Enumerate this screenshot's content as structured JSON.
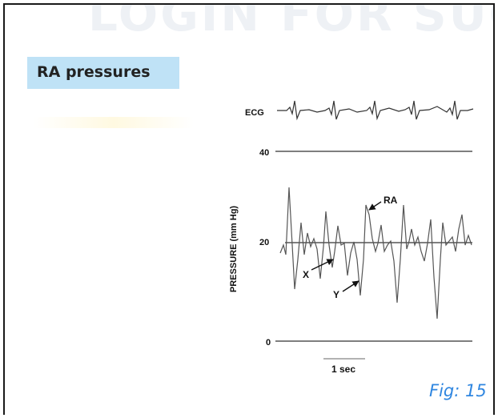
{
  "watermark": "LOGIN FOR SUCCESS",
  "section_title": "RA pressures",
  "figure": {
    "ecg_label": "ECG",
    "y_axis_label": "PRESSURE (mm Hg)",
    "ticks": [
      "40",
      "20",
      "0"
    ],
    "annotations": {
      "ra": "RA",
      "x": "X",
      "y": "Y"
    },
    "time_scale_label": "1 sec"
  },
  "caption": "Fig: 15"
}
